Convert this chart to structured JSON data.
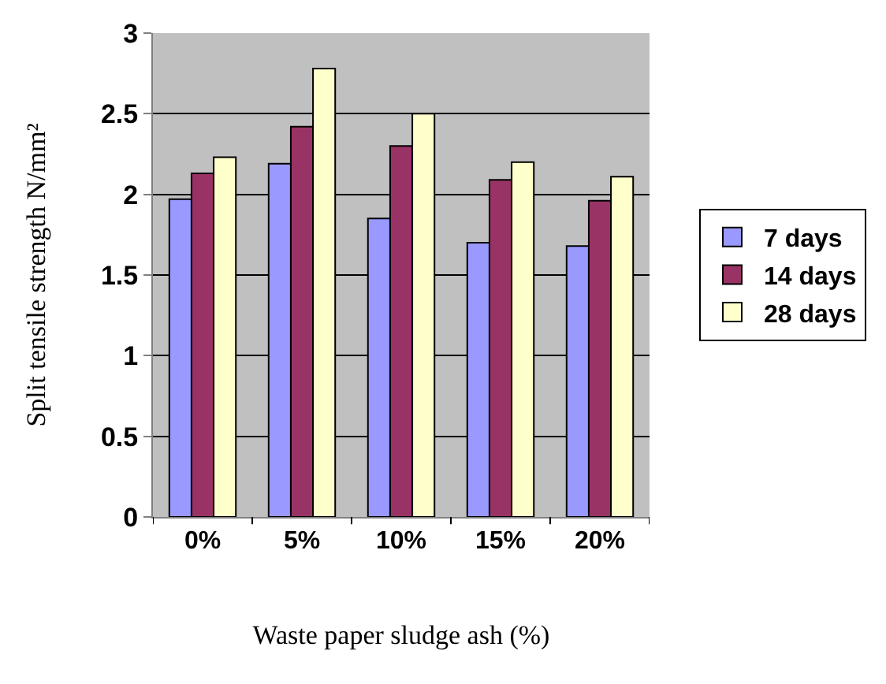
{
  "chart_data": {
    "type": "bar",
    "xlabel": "Waste paper sludge ash (%)",
    "ylabel": "Split tensile strength N/mm²",
    "categories": [
      "0%",
      "5%",
      "10%",
      "15%",
      "20%"
    ],
    "series": [
      {
        "name": "7 days",
        "color": "#9999ff",
        "values": [
          1.97,
          2.19,
          1.85,
          1.7,
          1.68
        ]
      },
      {
        "name": "14 days",
        "color": "#993366",
        "values": [
          2.13,
          2.42,
          2.3,
          2.09,
          1.96
        ]
      },
      {
        "name": "28 days",
        "color": "#ffffcc",
        "values": [
          2.23,
          2.78,
          2.5,
          2.2,
          2.11
        ]
      }
    ],
    "ylim": [
      0,
      3
    ],
    "yticks": [
      0,
      0.5,
      1,
      1.5,
      2,
      2.5,
      3
    ],
    "grid": "y",
    "legend": "right"
  }
}
